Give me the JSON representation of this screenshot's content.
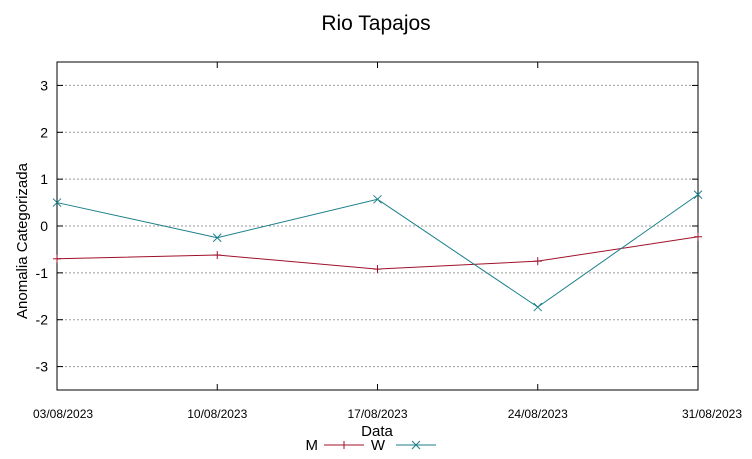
{
  "chart_data": {
    "type": "line",
    "title": "Rio Tapajos",
    "xlabel": "Data",
    "ylabel": "Anomalia Categorizada",
    "ylim": [
      -3.5,
      3.5
    ],
    "yticks": [
      3,
      2,
      1,
      0,
      -1,
      -2,
      -3
    ],
    "grid": true,
    "legend_position": "bottom",
    "categories": [
      "03/08/2023",
      "10/08/2023",
      "17/08/2023",
      "24/08/2023",
      "31/08/2023"
    ],
    "series": [
      {
        "name": "M",
        "marker": "+",
        "color": "#a0102a",
        "values": [
          -0.7,
          -0.62,
          -0.92,
          -0.75,
          -0.23
        ]
      },
      {
        "name": "W",
        "marker": "x",
        "color": "#1a7f8a",
        "values": [
          0.5,
          -0.25,
          0.57,
          -1.73,
          0.67
        ]
      }
    ]
  }
}
